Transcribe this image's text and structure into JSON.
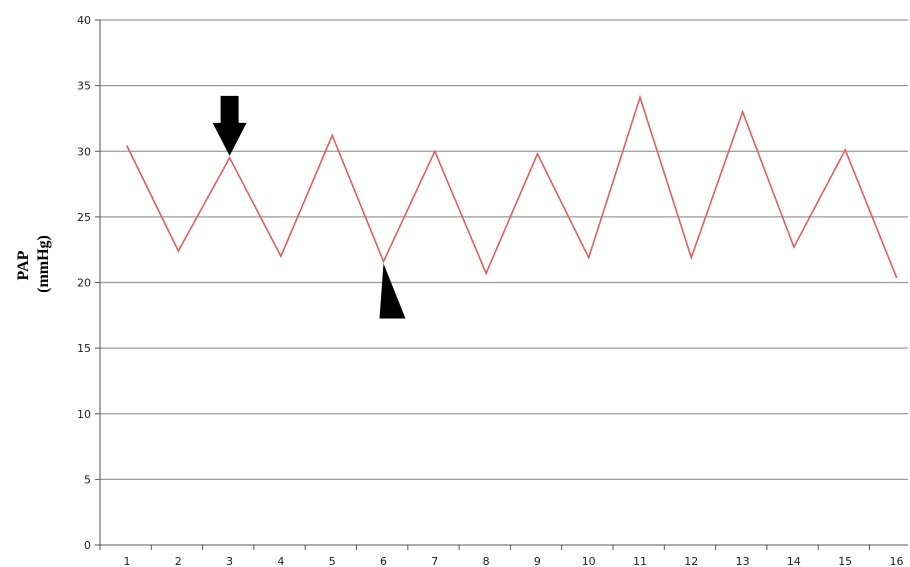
{
  "chart_data": {
    "type": "line",
    "title": "",
    "xlabel": "",
    "ylabel": "PAP\n(mmHg)",
    "ylabel_lines": [
      "PAP",
      "(mmHg)"
    ],
    "x": [
      1,
      2,
      3,
      4,
      5,
      6,
      7,
      8,
      9,
      10,
      11,
      12,
      13,
      14,
      15,
      16
    ],
    "series": [
      {
        "values": [
          30.4,
          22.4,
          29.5,
          22.0,
          31.2,
          21.6,
          30.0,
          20.7,
          29.8,
          21.9,
          34.1,
          21.9,
          33.0,
          22.7,
          30.1,
          20.4
        ]
      }
    ],
    "ylim": [
      0,
      40
    ],
    "yticks": [
      0,
      5,
      10,
      15,
      20,
      25,
      30,
      35,
      40
    ],
    "grid": true,
    "legend": "none",
    "annotations": [
      {
        "type": "down-arrow",
        "at_x": 3
      },
      {
        "type": "arrowhead",
        "at_x": 6
      }
    ],
    "colors": {
      "line": "#e06060",
      "grid": "#9a9a9a",
      "axis": "#555555",
      "marker": "#000000"
    }
  }
}
